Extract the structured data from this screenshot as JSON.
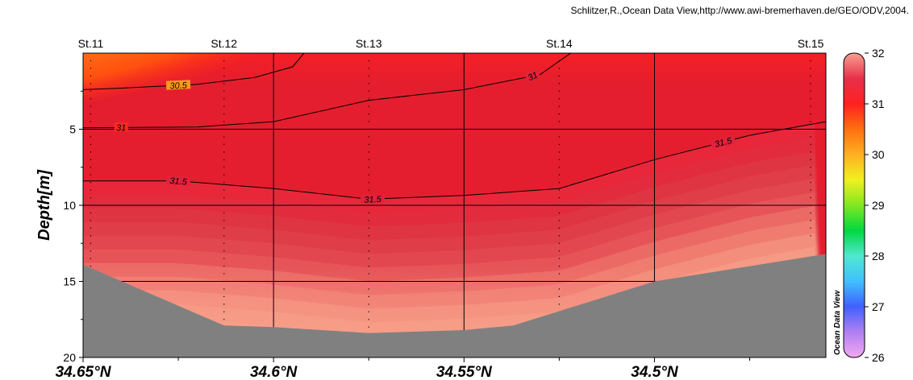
{
  "credit": "Schlitzer,R.,Ocean Data View,http://www.awi-bremerhaven.de/GEO/ODV,2004.",
  "watermark": "Ocean Data View",
  "chart_data": {
    "type": "heatmap",
    "title": "",
    "ylabel": "Depth[m]",
    "xlabel": "",
    "x_direction": "latitude decreasing to the right",
    "xlim": [
      34.65,
      34.455
    ],
    "ylim": [
      0,
      20
    ],
    "y_inverted": true,
    "grid": true,
    "xticks": [
      {
        "value": 34.65,
        "label": "34.65°N"
      },
      {
        "value": 34.6,
        "label": "34.6°N"
      },
      {
        "value": 34.55,
        "label": "34.55°N"
      },
      {
        "value": 34.5,
        "label": "34.5°N"
      }
    ],
    "yticks": [
      {
        "value": 5,
        "label": "5"
      },
      {
        "value": 10,
        "label": "10"
      },
      {
        "value": 15,
        "label": "15"
      },
      {
        "value": 20,
        "label": "20"
      }
    ],
    "stations": [
      {
        "name": "St.11",
        "lat": 34.648,
        "maxdepth": 14
      },
      {
        "name": "St.12",
        "lat": 34.613,
        "maxdepth": 18
      },
      {
        "name": "St.13",
        "lat": 34.575,
        "maxdepth": 18
      },
      {
        "name": "St.14",
        "lat": 34.525,
        "maxdepth": 17
      },
      {
        "name": "St.15",
        "lat": 34.459,
        "maxdepth": 12
      }
    ],
    "bottom_profile": [
      {
        "lat": 34.65,
        "depth": 13.9
      },
      {
        "lat": 34.613,
        "depth": 17.9
      },
      {
        "lat": 34.6,
        "depth": 18.0
      },
      {
        "lat": 34.575,
        "depth": 18.4
      },
      {
        "lat": 34.55,
        "depth": 18.2
      },
      {
        "lat": 34.537,
        "depth": 17.9
      },
      {
        "lat": 34.5,
        "depth": 15.0
      },
      {
        "lat": 34.455,
        "depth": 13.2
      }
    ],
    "contours": [
      {
        "level": 30.5,
        "label": "30.5",
        "points": [
          {
            "lat": 34.65,
            "depth": 2.4
          },
          {
            "lat": 34.64,
            "depth": 2.3
          },
          {
            "lat": 34.62,
            "depth": 2.05
          },
          {
            "lat": 34.605,
            "depth": 1.6
          },
          {
            "lat": 34.595,
            "depth": 0.9
          },
          {
            "lat": 34.592,
            "depth": 0
          }
        ]
      },
      {
        "level": 31,
        "label": "31",
        "points": [
          {
            "lat": 34.65,
            "depth": 4.9
          },
          {
            "lat": 34.62,
            "depth": 4.85
          },
          {
            "lat": 34.6,
            "depth": 4.5
          },
          {
            "lat": 34.575,
            "depth": 3.1
          },
          {
            "lat": 34.55,
            "depth": 2.4
          },
          {
            "lat": 34.53,
            "depth": 1.4
          },
          {
            "lat": 34.522,
            "depth": 0
          }
        ]
      },
      {
        "level": 31.5,
        "label": "31.5",
        "points": [
          {
            "lat": 34.65,
            "depth": 8.4
          },
          {
            "lat": 34.625,
            "depth": 8.4
          },
          {
            "lat": 34.6,
            "depth": 8.9
          },
          {
            "lat": 34.575,
            "depth": 9.6
          },
          {
            "lat": 34.55,
            "depth": 9.35
          },
          {
            "lat": 34.525,
            "depth": 8.9
          },
          {
            "lat": 34.5,
            "depth": 7.0
          },
          {
            "lat": 34.475,
            "depth": 5.4
          },
          {
            "lat": 34.455,
            "depth": 4.5
          }
        ]
      }
    ],
    "colorbar": {
      "min": 26,
      "max": 32,
      "ticks": [
        {
          "value": 26,
          "label": "26"
        },
        {
          "value": 27,
          "label": "27"
        },
        {
          "value": 28,
          "label": "28"
        },
        {
          "value": 29,
          "label": "29"
        },
        {
          "value": 30,
          "label": "30"
        },
        {
          "value": 31,
          "label": "31"
        },
        {
          "value": 32,
          "label": "32"
        }
      ],
      "stops": [
        {
          "value": 26.0,
          "color": "#f2a8f2"
        },
        {
          "value": 26.5,
          "color": "#b080f0"
        },
        {
          "value": 27.0,
          "color": "#4060ff"
        },
        {
          "value": 27.5,
          "color": "#40c0ff"
        },
        {
          "value": 28.0,
          "color": "#50e8d0"
        },
        {
          "value": 28.5,
          "color": "#00d840"
        },
        {
          "value": 29.0,
          "color": "#80e820"
        },
        {
          "value": 29.5,
          "color": "#f0f020"
        },
        {
          "value": 30.0,
          "color": "#ffb020"
        },
        {
          "value": 30.5,
          "color": "#ff7010"
        },
        {
          "value": 31.0,
          "color": "#ff2020"
        },
        {
          "value": 31.5,
          "color": "#e8304a"
        },
        {
          "value": 32.0,
          "color": "#f8a090"
        }
      ]
    }
  }
}
